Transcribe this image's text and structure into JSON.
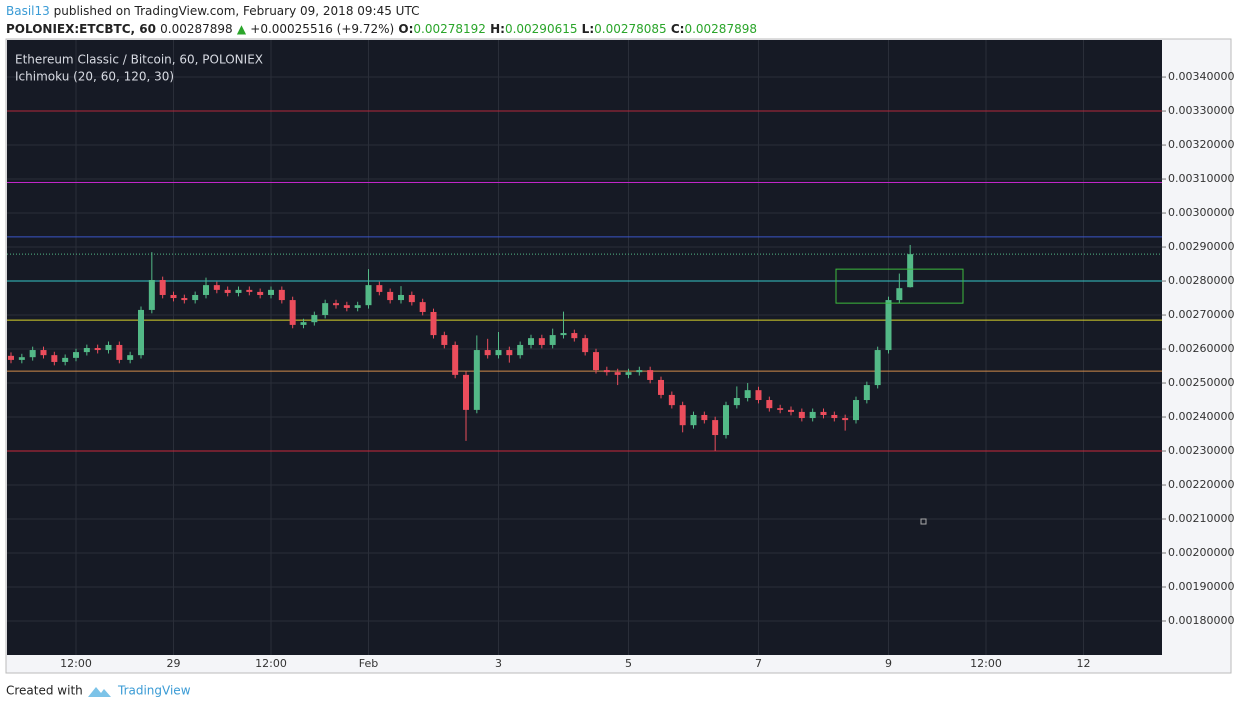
{
  "header": {
    "author": "Basil13",
    "published": "published on TradingView.com, February 09, 2018 09:45 UTC",
    "symbol": "POLONIEX:ETCBTC, 60",
    "last": "0.00287898",
    "change": "+0.00025516 (+9.72%)",
    "o_label": "O:",
    "o": "0.00278192",
    "h_label": "H:",
    "h": "0.00290615",
    "l_label": "L:",
    "l": "0.00278085",
    "c_label": "C:",
    "c": "0.00287898"
  },
  "footer": {
    "created": "Created with",
    "brand": "TradingView"
  },
  "chart_data": {
    "type": "candlestick",
    "title": "Ethereum Classic / Bitcoin, 60, POLONIEX",
    "subtitle": "Ichimoku (20, 60, 120, 30)",
    "up_color": "#53b987",
    "down_color": "#eb4d5c",
    "grid": true,
    "ylim": [
      0.0017,
      0.003509
    ],
    "yticks": [
      {
        "value": 0.0018,
        "label": "0.00180000"
      },
      {
        "value": 0.0019,
        "label": "0.00190000"
      },
      {
        "value": 0.002,
        "label": "0.00200000"
      },
      {
        "value": 0.0021,
        "label": "0.00210000"
      },
      {
        "value": 0.0022,
        "label": "0.00220000"
      },
      {
        "value": 0.0023,
        "label": "0.00230000"
      },
      {
        "value": 0.0024,
        "label": "0.00240000"
      },
      {
        "value": 0.0025,
        "label": "0.00250000"
      },
      {
        "value": 0.0026,
        "label": "0.00260000"
      },
      {
        "value": 0.0027,
        "label": "0.00270000"
      },
      {
        "value": 0.0028,
        "label": "0.00280000"
      },
      {
        "value": 0.0029,
        "label": "0.00290000"
      },
      {
        "value": 0.003,
        "label": "0.00300000"
      },
      {
        "value": 0.0031,
        "label": "0.00310000"
      },
      {
        "value": 0.0032,
        "label": "0.00320000"
      },
      {
        "value": 0.0033,
        "label": "0.00330000"
      },
      {
        "value": 0.0034,
        "label": "0.00340000"
      }
    ],
    "categories": [
      null,
      null,
      null,
      null,
      null,
      null,
      "12:00",
      null,
      null,
      null,
      null,
      null,
      null,
      null,
      null,
      "29",
      null,
      null,
      null,
      null,
      null,
      null,
      null,
      null,
      "12:00",
      null,
      null,
      null,
      null,
      null,
      null,
      null,
      null,
      "Feb",
      null,
      null,
      null,
      null,
      null,
      null,
      null,
      null,
      null,
      null,
      null,
      "3",
      null,
      null,
      null,
      null,
      null,
      null,
      null,
      null,
      null,
      null,
      null,
      "5",
      null,
      null,
      null,
      null,
      null,
      null,
      null,
      null,
      null,
      null,
      null,
      "7",
      null,
      null,
      null,
      null,
      null,
      null,
      null,
      null,
      null,
      null,
      null,
      "9",
      null,
      null,
      null,
      null,
      null,
      null,
      null,
      null,
      "12:00",
      null,
      null,
      null,
      null,
      null,
      null,
      null,
      null,
      "12",
      null,
      null,
      null,
      null,
      null,
      null,
      null
    ],
    "open": [
      0.00258,
      0.002568,
      0.002576,
      0.002597,
      0.002582,
      0.002562,
      0.002574,
      0.002591,
      0.002603,
      0.002597,
      0.002612,
      0.002568,
      0.002582,
      0.002715,
      0.002803,
      0.002759,
      0.00275,
      0.002744,
      0.002759,
      0.002788,
      0.002774,
      0.002765,
      0.002774,
      0.002768,
      0.002759,
      0.002774,
      0.002744,
      0.002671,
      0.002679,
      0.0027,
      0.002735,
      0.002729,
      0.002721,
      0.002729,
      0.002788,
      0.002768,
      0.002744,
      0.002759,
      0.002738,
      0.002709,
      0.002641,
      0.002612,
      0.002524,
      0.002421,
      0.002597,
      0.002582,
      0.002597,
      0.002582,
      0.002612,
      0.002632,
      0.002612,
      0.002641,
      0.002647,
      0.002632,
      0.002591,
      0.002538,
      0.002532,
      0.002524,
      0.002532,
      0.002538,
      0.002509,
      0.002465,
      0.002435,
      0.002376,
      0.002406,
      0.002391,
      0.002347,
      0.002435,
      0.002456,
      0.002479,
      0.00245,
      0.002426,
      0.002421,
      0.002415,
      0.002397,
      0.002415,
      0.002406,
      0.002397,
      0.002391,
      0.00245,
      0.002494,
      0.002597,
      0.002744,
      0.00278192,
      null,
      null,
      null,
      null,
      null,
      null,
      null,
      null,
      null,
      null,
      null,
      null,
      null,
      null,
      null,
      null,
      null,
      null,
      null,
      null,
      null,
      null,
      null
    ],
    "high": [
      0.00259,
      0.002586,
      0.002607,
      0.002607,
      0.002592,
      0.002584,
      0.002601,
      0.002613,
      0.002613,
      0.002622,
      0.002622,
      0.002592,
      0.002725,
      0.002885,
      0.002813,
      0.002769,
      0.00276,
      0.002769,
      0.00281,
      0.002798,
      0.002784,
      0.002784,
      0.002784,
      0.002778,
      0.002784,
      0.002784,
      0.002754,
      0.002689,
      0.00271,
      0.002745,
      0.002745,
      0.002739,
      0.002739,
      0.002835,
      0.002798,
      0.002778,
      0.002785,
      0.002769,
      0.002748,
      0.002719,
      0.002651,
      0.002622,
      0.002534,
      0.00264,
      0.00263,
      0.00265,
      0.002607,
      0.002622,
      0.002642,
      0.002642,
      0.00266,
      0.00271,
      0.002657,
      0.002642,
      0.002601,
      0.002548,
      0.002542,
      0.002542,
      0.002548,
      0.002548,
      0.002519,
      0.002475,
      0.002445,
      0.002416,
      0.002416,
      0.002401,
      0.002445,
      0.00249,
      0.0025,
      0.002489,
      0.00246,
      0.002436,
      0.002431,
      0.002425,
      0.002425,
      0.002425,
      0.002416,
      0.002407,
      0.00246,
      0.002504,
      0.002607,
      0.002754,
      0.002822,
      0.00290615,
      null,
      null,
      null,
      null,
      null,
      null,
      null,
      null,
      null,
      null,
      null,
      null,
      null,
      null,
      null,
      null,
      null,
      null,
      null,
      null,
      null,
      null,
      null
    ],
    "low": [
      0.002558,
      0.002558,
      0.002566,
      0.002572,
      0.002552,
      0.002552,
      0.002564,
      0.002581,
      0.002587,
      0.002587,
      0.002558,
      0.002558,
      0.002572,
      0.002705,
      0.002749,
      0.00274,
      0.002734,
      0.002734,
      0.002749,
      0.002764,
      0.002755,
      0.002755,
      0.002758,
      0.002749,
      0.002749,
      0.002734,
      0.002661,
      0.002661,
      0.002669,
      0.00269,
      0.002719,
      0.002711,
      0.002711,
      0.002719,
      0.002758,
      0.002734,
      0.002734,
      0.002728,
      0.002699,
      0.002631,
      0.002602,
      0.002514,
      0.00233,
      0.002411,
      0.002572,
      0.002572,
      0.00256,
      0.002572,
      0.002602,
      0.002602,
      0.002602,
      0.002631,
      0.002622,
      0.002581,
      0.002528,
      0.002522,
      0.002494,
      0.002514,
      0.002522,
      0.002499,
      0.002455,
      0.002425,
      0.002355,
      0.002366,
      0.002381,
      0.0023,
      0.002337,
      0.002425,
      0.002446,
      0.00244,
      0.002416,
      0.002411,
      0.002405,
      0.002387,
      0.002387,
      0.002396,
      0.002387,
      0.00236,
      0.002381,
      0.00244,
      0.002484,
      0.002587,
      0.002734,
      0.00278085,
      null,
      null,
      null,
      null,
      null,
      null,
      null,
      null,
      null,
      null,
      null,
      null,
      null,
      null,
      null,
      null,
      null,
      null,
      null,
      null,
      null,
      null,
      null
    ],
    "close": [
      0.002568,
      0.002576,
      0.002597,
      0.002582,
      0.002562,
      0.002574,
      0.002591,
      0.002603,
      0.002597,
      0.002612,
      0.002568,
      0.002582,
      0.002715,
      0.002803,
      0.002759,
      0.00275,
      0.002744,
      0.002759,
      0.002788,
      0.002774,
      0.002765,
      0.002774,
      0.002768,
      0.002759,
      0.002774,
      0.002744,
      0.002671,
      0.002679,
      0.0027,
      0.002735,
      0.002729,
      0.002721,
      0.002729,
      0.002788,
      0.002768,
      0.002744,
      0.002759,
      0.002738,
      0.002709,
      0.002641,
      0.002612,
      0.002524,
      0.002421,
      0.002597,
      0.002582,
      0.002597,
      0.002582,
      0.002612,
      0.002632,
      0.002612,
      0.002641,
      0.002647,
      0.002632,
      0.002591,
      0.002538,
      0.002532,
      0.002524,
      0.002532,
      0.002538,
      0.002509,
      0.002465,
      0.002435,
      0.002376,
      0.002406,
      0.002391,
      0.002347,
      0.002435,
      0.002456,
      0.002479,
      0.00245,
      0.002426,
      0.002421,
      0.002415,
      0.002397,
      0.002415,
      0.002406,
      0.002397,
      0.002391,
      0.00245,
      0.002494,
      0.002597,
      0.002744,
      0.002779,
      0.00287898,
      null,
      null,
      null,
      null,
      null,
      null,
      null,
      null,
      null,
      null,
      null,
      null,
      null,
      null,
      null,
      null,
      null,
      null,
      null,
      null,
      null,
      null,
      null
    ],
    "hlines": [
      {
        "value": 0.0033,
        "color": "#b2283a"
      },
      {
        "value": 0.00309,
        "color": "#c026c8"
      },
      {
        "value": 0.00293,
        "color": "#3a55c8"
      },
      {
        "value": 0.0028,
        "color": "#35c6c8"
      },
      {
        "value": 0.002685,
        "color": "#d8d22a"
      },
      {
        "value": 0.002535,
        "color": "#d08a4a"
      },
      {
        "value": 0.0023,
        "color": "#c8283a"
      }
    ],
    "zone": {
      "top": 0.002835,
      "bottom": 0.002735,
      "color": "#3dbb3d"
    },
    "last_line_color": "#53b987"
  }
}
